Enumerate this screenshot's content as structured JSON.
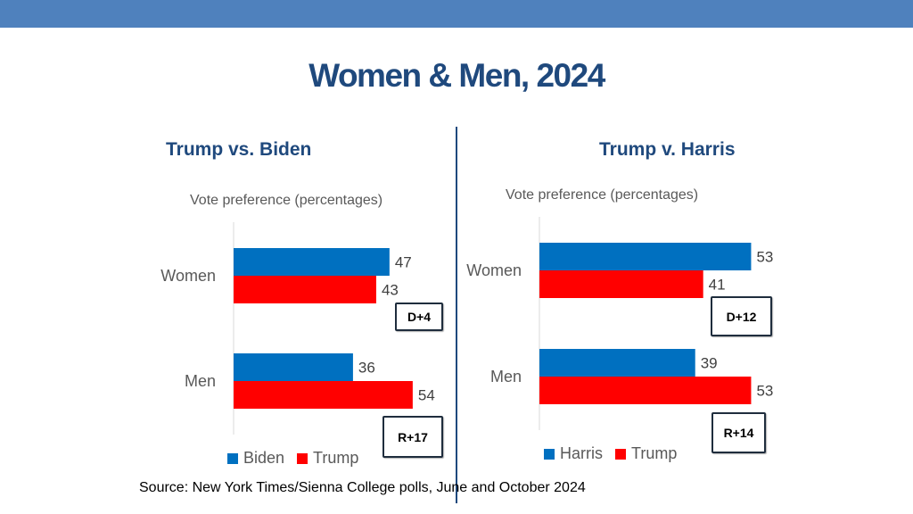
{
  "slide": {
    "title": "Women & Men, 2024",
    "source": "Source: New York Times/Sienna College polls, June and October 2024"
  },
  "colors": {
    "blue": "#0070c0",
    "red": "#ff0000",
    "accent": "#1f497d",
    "band": "#4f81bd"
  },
  "chart_data": [
    {
      "type": "bar",
      "orientation": "horizontal",
      "panel_title": "Trump vs. Biden",
      "title": "Vote preference (percentages)",
      "categories": [
        "Women",
        "Men"
      ],
      "series": [
        {
          "name": "Biden",
          "color": "#0070c0",
          "values": [
            47,
            36
          ]
        },
        {
          "name": "Trump",
          "color": "#ff0000",
          "values": [
            43,
            54
          ]
        }
      ],
      "annotations": [
        "D+4",
        "R+17"
      ],
      "xlim": [
        0,
        60
      ],
      "legend": "bottom"
    },
    {
      "type": "bar",
      "orientation": "horizontal",
      "panel_title": "Trump v. Harris",
      "title": "Vote preference (percentages)",
      "categories": [
        "Women",
        "Men"
      ],
      "series": [
        {
          "name": "Harris",
          "color": "#0070c0",
          "values": [
            53,
            39
          ]
        },
        {
          "name": "Trump",
          "color": "#ff0000",
          "values": [
            41,
            53
          ]
        }
      ],
      "annotations": [
        "D+12",
        "R+14"
      ],
      "xlim": [
        0,
        60
      ],
      "legend": "bottom"
    }
  ]
}
